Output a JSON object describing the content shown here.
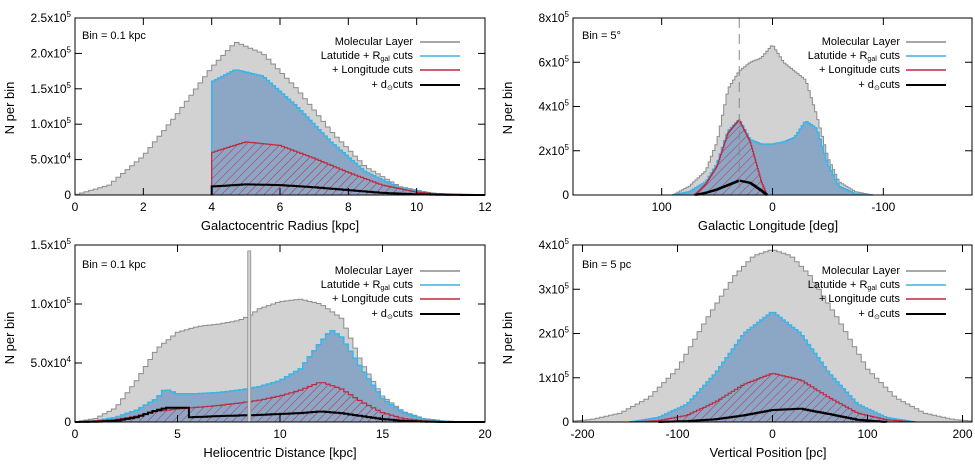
{
  "figure": {
    "style": {
      "gray_fill": "#d2d2d2",
      "gray_line": "#8c8c8c",
      "blue_fill": "#8ca6c6",
      "blue_line": "#3cb4e6",
      "red_line": "#c0283c",
      "black_line": "#000000"
    }
  },
  "chart_data": [
    {
      "id": "p1",
      "type": "area",
      "title": "",
      "xlabel": "Galactocentric Radius  [kpc]",
      "ylabel": "N per bin",
      "bin_label": "Bin = 0.1 kpc",
      "xlim": [
        0,
        12
      ],
      "ylim": [
        0,
        250000
      ],
      "xticks": [
        0,
        2,
        4,
        6,
        8,
        10,
        12
      ],
      "xtick_labels": [
        "0",
        "2",
        "4",
        "6",
        "8",
        "10",
        "12"
      ],
      "yticks": [
        0,
        50000,
        100000,
        150000,
        200000,
        250000
      ],
      "ytick_labels": [
        [
          "0",
          ""
        ],
        [
          "5.0x10",
          "4"
        ],
        [
          "1.0x10",
          "5"
        ],
        [
          "1.5x10",
          "5"
        ],
        [
          "2.0x10",
          "5"
        ],
        [
          "2.5x10",
          "5"
        ]
      ],
      "legend": [
        "Molecular Layer",
        "Latutide + R",
        "gal",
        " cuts",
        "+ Longitude cuts",
        "+ d",
        "⊙",
        "cuts"
      ],
      "series": [
        {
          "name": "Molecular Layer",
          "x": [
            0,
            1,
            2,
            3,
            4,
            4.7,
            5.5,
            6.5,
            7.5,
            8.5,
            9.5,
            10.5,
            12
          ],
          "values": [
            0,
            14000,
            55000,
            115000,
            180000,
            216000,
            200000,
            150000,
            90000,
            40000,
            12000,
            2000,
            0
          ]
        },
        {
          "name": "Latutide + Rgal cuts",
          "x": [
            4,
            4.01,
            4.7,
            5.5,
            6.5,
            7.5,
            8.5,
            9.5,
            10.5,
            12
          ],
          "values": [
            0,
            160000,
            177000,
            168000,
            125000,
            75000,
            33000,
            10000,
            2000,
            0
          ]
        },
        {
          "name": "+ Longitude cuts",
          "x": [
            4,
            4.01,
            5,
            6,
            7,
            8,
            9,
            10,
            11,
            12
          ],
          "values": [
            0,
            60000,
            75000,
            70000,
            52000,
            32000,
            14000,
            4000,
            500,
            0
          ]
        },
        {
          "name": "+ d cuts",
          "x": [
            4,
            4.01,
            5,
            6,
            7,
            8,
            9,
            10,
            11,
            12
          ],
          "values": [
            0,
            12000,
            15000,
            14000,
            11000,
            7000,
            3000,
            1000,
            100,
            0
          ]
        }
      ]
    },
    {
      "id": "p2",
      "type": "area",
      "title": "",
      "xlabel": "Galactic Longitude  [deg]",
      "ylabel": "N per bin",
      "bin_label": "Bin = 5°",
      "xlim": [
        180,
        -180
      ],
      "ylim": [
        0,
        800000
      ],
      "xticks": [
        100,
        0,
        -100
      ],
      "xtick_labels": [
        "100",
        "0",
        "-100"
      ],
      "yticks": [
        0,
        200000,
        400000,
        600000,
        800000
      ],
      "ytick_labels": [
        [
          "0",
          ""
        ],
        [
          "2x10",
          "5"
        ],
        [
          "4x10",
          "5"
        ],
        [
          "6x10",
          "5"
        ],
        [
          "8x10",
          "5"
        ]
      ],
      "vline": 30,
      "legend": [
        "Molecular Layer",
        "Latutide + R",
        "gal",
        " cuts",
        "+ Longitude cuts",
        "+ d",
        "⊙",
        "cuts"
      ],
      "series": [
        {
          "name": "Molecular Layer",
          "x": [
            90,
            75,
            60,
            50,
            40,
            30,
            20,
            10,
            0,
            -10,
            -20,
            -30,
            -40,
            -50,
            -60,
            -75,
            -90
          ],
          "values": [
            0,
            40000,
            110000,
            240000,
            480000,
            560000,
            600000,
            620000,
            680000,
            600000,
            560000,
            520000,
            360000,
            170000,
            60000,
            15000,
            0
          ]
        },
        {
          "name": "Latutide + Rgal cuts",
          "x": [
            90,
            75,
            60,
            50,
            40,
            30,
            20,
            10,
            0,
            -10,
            -20,
            -30,
            -40,
            -50,
            -60,
            -75,
            -90
          ],
          "values": [
            0,
            15000,
            60000,
            140000,
            290000,
            340000,
            250000,
            230000,
            230000,
            240000,
            260000,
            335000,
            300000,
            140000,
            40000,
            5000,
            0
          ]
        },
        {
          "name": "+ Longitude cuts",
          "x": [
            70,
            60,
            50,
            40,
            30,
            20,
            10,
            5
          ],
          "values": [
            0,
            50000,
            130000,
            280000,
            340000,
            240000,
            60000,
            0
          ]
        },
        {
          "name": "+ d cuts",
          "x": [
            70,
            60,
            50,
            40,
            30,
            20,
            10,
            5
          ],
          "values": [
            0,
            10000,
            25000,
            45000,
            65000,
            55000,
            20000,
            0
          ]
        }
      ]
    },
    {
      "id": "p3",
      "type": "area",
      "title": "",
      "xlabel": "Heliocentric Distance  [kpc]",
      "ylabel": "N per bin",
      "bin_label": "Bin = 0.1 kpc",
      "xlim": [
        0,
        20
      ],
      "ylim": [
        0,
        150000
      ],
      "xticks": [
        0,
        5,
        10,
        15,
        20
      ],
      "xtick_labels": [
        "0",
        "5",
        "10",
        "15",
        "20"
      ],
      "yticks": [
        0,
        50000,
        100000,
        150000
      ],
      "ytick_labels": [
        [
          "0",
          ""
        ],
        [
          "5.0x10",
          "4"
        ],
        [
          "1.0x10",
          "5"
        ],
        [
          "1.5x10",
          "5"
        ]
      ],
      "spike": {
        "x": 8.5,
        "value": 145000
      },
      "legend": [
        "Molecular Layer",
        "Latutide + R",
        "gal",
        " cuts",
        "+ Longitude cuts",
        "+ d",
        "⊙",
        "cuts"
      ],
      "series": [
        {
          "name": "Molecular Layer",
          "x": [
            0,
            1,
            2,
            3,
            4,
            5,
            6,
            7,
            8,
            8.5,
            9,
            10,
            11,
            12,
            13,
            14,
            15,
            16,
            17,
            18,
            19,
            20
          ],
          "values": [
            0,
            3000,
            12000,
            35000,
            62000,
            76000,
            81000,
            83000,
            86000,
            90000,
            96000,
            102000,
            104000,
            100000,
            88000,
            50000,
            22000,
            9000,
            3000,
            1000,
            0,
            0
          ]
        },
        {
          "name": "Latutide + Rgal cuts",
          "x": [
            0,
            1,
            2,
            3,
            4,
            4.4,
            5,
            6,
            7,
            8,
            9,
            10,
            11,
            12,
            12.5,
            13,
            14,
            15,
            16,
            17,
            18,
            19,
            20
          ],
          "values": [
            0,
            1000,
            4000,
            10000,
            20000,
            28000,
            24000,
            24000,
            25000,
            27000,
            30000,
            35000,
            45000,
            68000,
            78000,
            72000,
            45000,
            20000,
            8000,
            2500,
            500,
            0,
            0
          ]
        },
        {
          "name": "+ Longitude cuts",
          "x": [
            0,
            2,
            3,
            4,
            5,
            6,
            7,
            8,
            9,
            10,
            11,
            12,
            13,
            14,
            15,
            16,
            17,
            18,
            20
          ],
          "values": [
            0,
            2000,
            5000,
            9000,
            11000,
            12500,
            14000,
            16000,
            18500,
            22000,
            27000,
            34000,
            28000,
            17000,
            8000,
            3000,
            1000,
            200,
            0
          ]
        },
        {
          "name": "+ d cuts",
          "x": [
            0,
            1,
            2,
            3,
            4,
            4.5,
            5.6,
            5.61,
            7,
            9,
            11,
            12,
            13,
            14,
            15,
            16,
            17,
            18,
            20
          ],
          "values": [
            0,
            200,
            1000,
            4000,
            10000,
            12000,
            12000,
            4000,
            5000,
            6000,
            7500,
            9000,
            7500,
            5000,
            2500,
            1000,
            300,
            0,
            0
          ]
        }
      ]
    },
    {
      "id": "p4",
      "type": "area",
      "title": "",
      "xlabel": "Vertical Position  [pc]",
      "ylabel": "N per bin",
      "bin_label": "Bin = 5 pc",
      "xlim": [
        -210,
        210
      ],
      "ylim": [
        0,
        400000
      ],
      "xticks": [
        -200,
        -100,
        0,
        100,
        200
      ],
      "xtick_labels": [
        "-200",
        "-100",
        "0",
        "100",
        "200"
      ],
      "yticks": [
        0,
        100000,
        200000,
        300000,
        400000
      ],
      "ytick_labels": [
        [
          "0",
          ""
        ],
        [
          "1x10",
          "5"
        ],
        [
          "2x10",
          "5"
        ],
        [
          "3x10",
          "5"
        ],
        [
          "4x10",
          "5"
        ]
      ],
      "legend": [
        "Molecular Layer",
        "Latutide + R",
        "gal",
        " cuts",
        "+ Longitude cuts",
        "+ d",
        "⊙",
        "cuts"
      ],
      "series": [
        {
          "name": "Molecular Layer",
          "x": [
            -210,
            -190,
            -160,
            -130,
            -100,
            -70,
            -40,
            -20,
            0,
            20,
            40,
            70,
            100,
            130,
            160,
            190,
            210
          ],
          "values": [
            2000,
            6000,
            20000,
            55000,
            120000,
            230000,
            330000,
            375000,
            390000,
            375000,
            330000,
            230000,
            120000,
            55000,
            20000,
            6000,
            2000
          ]
        },
        {
          "name": "Latutide + Rgal cuts",
          "x": [
            -150,
            -120,
            -90,
            -60,
            -30,
            0,
            30,
            60,
            90,
            120,
            150
          ],
          "values": [
            0,
            10000,
            40000,
            110000,
            200000,
            250000,
            200000,
            110000,
            40000,
            10000,
            0
          ]
        },
        {
          "name": "+ Longitude cuts",
          "x": [
            -150,
            -120,
            -90,
            -60,
            -30,
            0,
            30,
            60,
            90,
            120,
            150
          ],
          "values": [
            0,
            3000,
            15000,
            45000,
            85000,
            110000,
            95000,
            55000,
            20000,
            5000,
            0
          ]
        },
        {
          "name": "+ d cuts",
          "x": [
            -120,
            -90,
            -60,
            -30,
            0,
            30,
            60,
            90,
            120
          ],
          "values": [
            0,
            2000,
            6000,
            15000,
            27000,
            30000,
            18000,
            5000,
            0
          ]
        }
      ]
    }
  ]
}
